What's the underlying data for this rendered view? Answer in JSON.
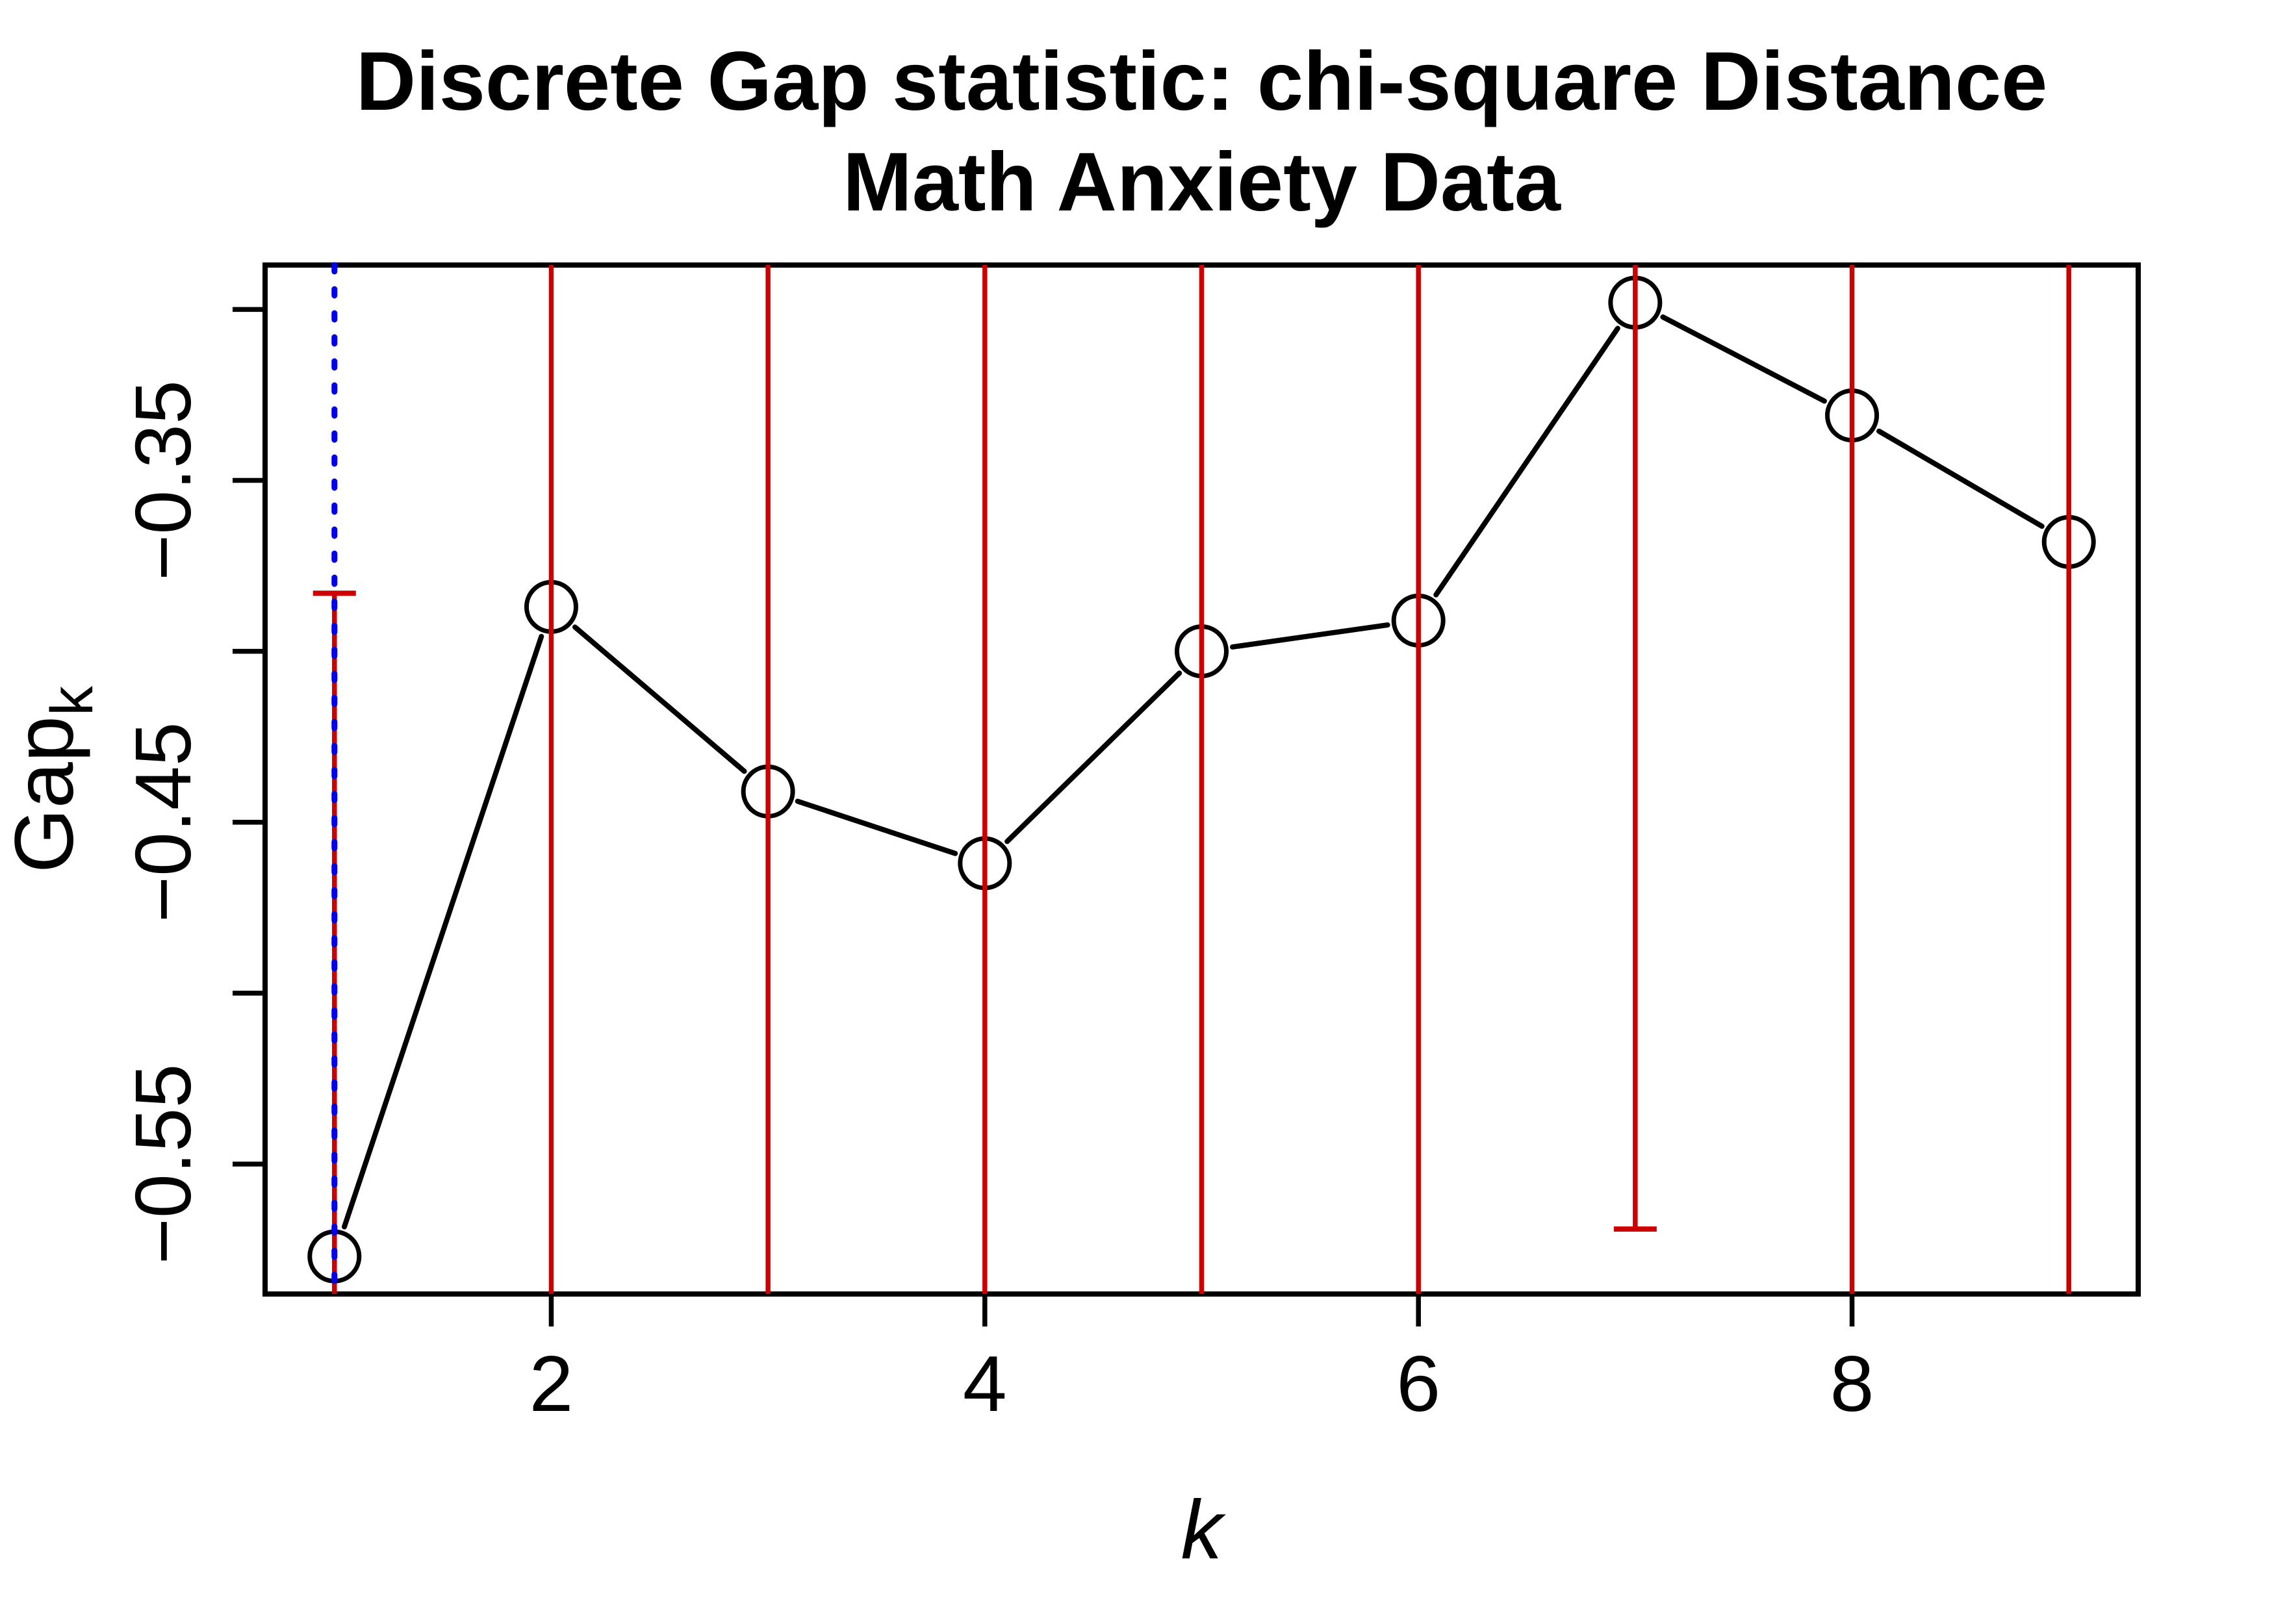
{
  "figure": {
    "title_line1": "Discrete Gap statistic: chi-square Distance",
    "title_line2": "Math Anxiety Data",
    "x_axis": {
      "label": "k",
      "ticks": [
        {
          "value": 2,
          "label": "2"
        },
        {
          "value": 4,
          "label": "4"
        },
        {
          "value": 6,
          "label": "6"
        },
        {
          "value": 8,
          "label": "8"
        }
      ]
    },
    "y_axis": {
      "label_base": "Gap",
      "label_subscript": "k",
      "ticks": [
        {
          "value": -0.3,
          "label": ""
        },
        {
          "value": -0.35,
          "label": "−0.35"
        },
        {
          "value": -0.4,
          "label": ""
        },
        {
          "value": -0.45,
          "label": "−0.45"
        },
        {
          "value": -0.5,
          "label": ""
        },
        {
          "value": -0.55,
          "label": "−0.55"
        }
      ]
    },
    "colors": {
      "series": "#000000",
      "error_bar": "#CC0000",
      "reference_line": "#0000EE",
      "background": "#FFFFFF"
    }
  },
  "chart_data": {
    "type": "line",
    "title": "Discrete Gap statistic: chi-square Distance",
    "subtitle": "Math Anxiety Data",
    "xlabel": "k",
    "ylabel": "Gap_k",
    "x": [
      1,
      2,
      3,
      4,
      5,
      6,
      7,
      8,
      9
    ],
    "y": [
      -0.577,
      -0.387,
      -0.441,
      -0.462,
      -0.4,
      -0.391,
      -0.298,
      -0.331,
      -0.368
    ],
    "xlim": [
      0.68,
      9.32
    ],
    "ylim": [
      -0.588,
      -0.287
    ],
    "marker": "open-circle",
    "grid": false,
    "legend": "none",
    "reference_line_x": 1,
    "reference_line_style": "dotted-blue",
    "error_bars": [
      {
        "k": 1,
        "upper": -0.383,
        "lower": null
      },
      {
        "k": 2,
        "upper": null,
        "lower": null
      },
      {
        "k": 3,
        "upper": null,
        "lower": null
      },
      {
        "k": 4,
        "upper": null,
        "lower": null
      },
      {
        "k": 5,
        "upper": null,
        "lower": null
      },
      {
        "k": 6,
        "upper": null,
        "lower": null
      },
      {
        "k": 7,
        "upper": null,
        "lower": -0.569
      },
      {
        "k": 8,
        "upper": null,
        "lower": null
      },
      {
        "k": 9,
        "upper": null,
        "lower": null
      }
    ]
  }
}
